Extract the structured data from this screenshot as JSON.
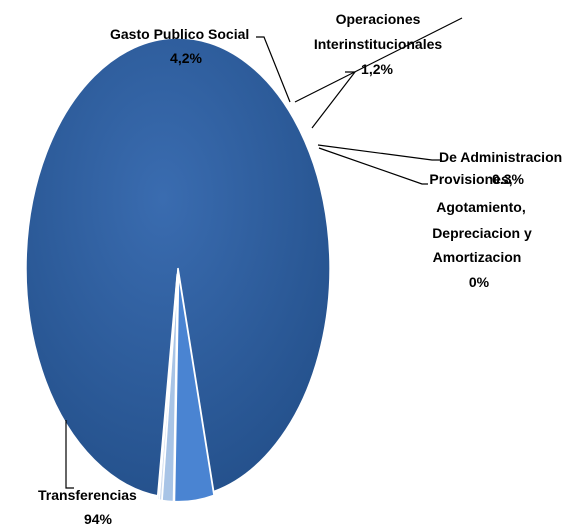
{
  "chart_data": {
    "type": "pie",
    "title": "",
    "slices": [
      {
        "label": "Transferencias",
        "value_label": "94%",
        "value": 94.0,
        "color": "#2a5a9a",
        "label_lines": [
          "Transferencias"
        ]
      },
      {
        "label": "Gasto Publico Social",
        "value_label": "4,2%",
        "value": 4.2,
        "color": "#4a84d2",
        "label_lines": [
          "Gasto Publico Social"
        ]
      },
      {
        "label": "Operaciones Interinstitucionales",
        "value_label": "1,2%",
        "value": 1.2,
        "color": "#a8c4e6",
        "label_lines": [
          "Operaciones",
          "Interinstitucionales"
        ]
      },
      {
        "label": "De Administracion",
        "value_label": "0.3%",
        "value": 0.3,
        "color": "#cfdcee",
        "label_lines": [
          "De Administracion"
        ]
      },
      {
        "label": "Provisiones, Agotamiento, Depreciacion y Amortizacion",
        "value_label": "0%",
        "value": 0.0,
        "color": "#3c6fb6",
        "label_lines": [
          "Provisiones,",
          "Agotamiento,",
          "Depreciacion y",
          "Amortizacion"
        ]
      }
    ]
  }
}
